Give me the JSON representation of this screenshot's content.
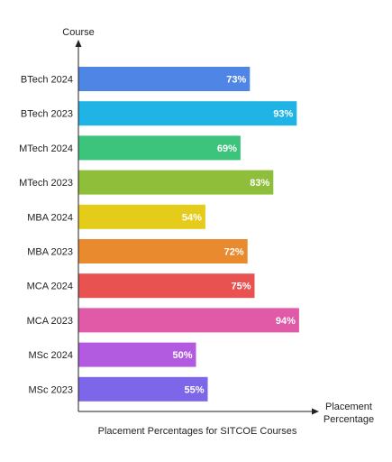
{
  "chart_data": {
    "type": "bar",
    "orientation": "horizontal",
    "title": "Placement Percentages for SITCOE Courses",
    "ylabel": "Course",
    "xlabel_lines": [
      "Placement",
      "Percentage"
    ],
    "xlim": [
      0,
      100
    ],
    "grid": false,
    "categories": [
      "BTech 2024",
      "BTech 2023",
      "MTech 2024",
      "MTech 2023",
      "MBA 2024",
      "MBA 2023",
      "MCA 2024",
      "MCA 2023",
      "MSc 2024",
      "MSc 2023"
    ],
    "values": [
      73,
      93,
      69,
      83,
      54,
      72,
      75,
      94,
      50,
      55
    ],
    "data_labels": [
      "73%",
      "93%",
      "69%",
      "83%",
      "54%",
      "72%",
      "75%",
      "94%",
      "50%",
      "55%"
    ],
    "colors": [
      "#4f86e5",
      "#1fb3e6",
      "#3cc47c",
      "#8fbf3a",
      "#e6cc1a",
      "#e88a2d",
      "#e85352",
      "#e05aa8",
      "#b25ae0",
      "#7d66e8"
    ]
  }
}
